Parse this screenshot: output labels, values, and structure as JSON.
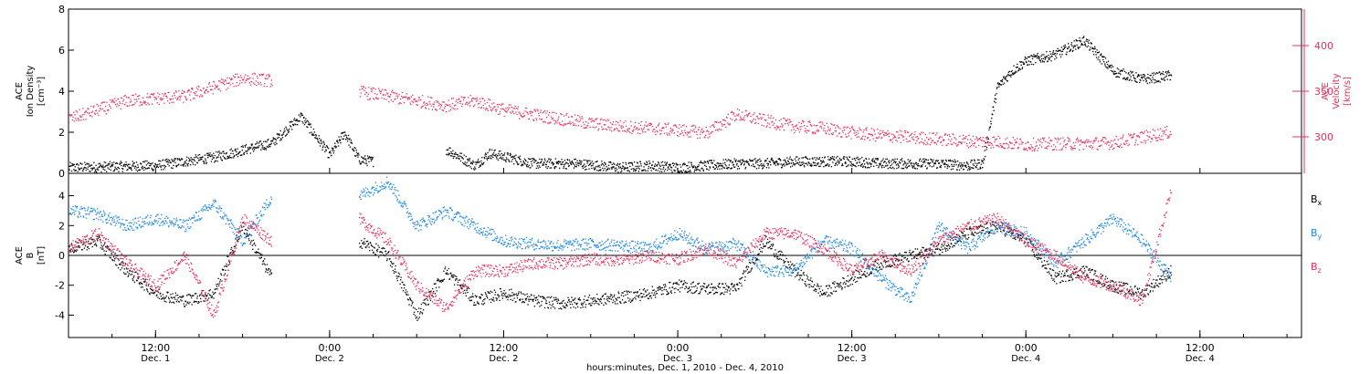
{
  "chart_data": [
    {
      "type": "scatter",
      "panel": "top",
      "ylabel_left": [
        "ACE",
        "Ion Density",
        "[cm⁻³]"
      ],
      "ylabel_right": [
        "ACE",
        "Velocity",
        "[km/s]"
      ],
      "ylim_left": [
        0,
        8
      ],
      "yticks_left": [
        "0",
        "2",
        "4",
        "6",
        "8"
      ],
      "ylim_right": [
        260,
        440
      ],
      "yticks_right": [
        "300",
        "350",
        "400"
      ],
      "series": [
        {
          "axis": "left",
          "color": "#000000",
          "t": [
            0,
            6,
            10,
            14,
            16,
            18,
            19,
            20,
            21,
            22,
            23,
            26,
            28,
            29,
            32,
            35,
            38,
            40,
            42,
            44,
            46,
            48,
            50,
            52,
            54,
            56,
            58,
            60,
            62,
            63,
            64,
            65,
            66,
            68,
            70,
            72,
            74,
            76
          ],
          "y": [
            0.3,
            0.4,
            0.8,
            1.5,
            2.8,
            0.9,
            2.0,
            0.7,
            0.6,
            null,
            null,
            1.2,
            0.4,
            1.0,
            0.5,
            0.5,
            0.3,
            0.4,
            0.3,
            0.4,
            0.5,
            0.5,
            0.6,
            0.6,
            0.6,
            0.5,
            0.5,
            0.5,
            0.4,
            0.5,
            4.2,
            5.0,
            5.5,
            5.8,
            6.5,
            5.0,
            4.6,
            4.8
          ]
        },
        {
          "axis": "right",
          "color": "#e8305a",
          "t": [
            0,
            4,
            8,
            12,
            14,
            16,
            18,
            20,
            22,
            24,
            26,
            28,
            30,
            32,
            34,
            36,
            38,
            40,
            42,
            44,
            46,
            48,
            50,
            52,
            54,
            56,
            58,
            60,
            62,
            64,
            66,
            68,
            70,
            72,
            74,
            76
          ],
          "y": [
            320,
            340,
            345,
            365,
            362,
            null,
            null,
            350,
            345,
            340,
            335,
            340,
            330,
            325,
            320,
            315,
            312,
            310,
            308,
            305,
            325,
            318,
            312,
            310,
            305,
            302,
            300,
            298,
            296,
            295,
            292,
            293,
            293,
            294,
            300,
            306
          ]
        }
      ]
    },
    {
      "type": "scatter",
      "panel": "bottom",
      "ylabel": [
        "ACE",
        "B",
        "[nT]"
      ],
      "ylim": [
        -5.5,
        5.5
      ],
      "yticks": [
        "-4",
        "-2",
        "0",
        "2",
        "4"
      ],
      "legend": [
        {
          "label": "B",
          "sub": "x",
          "color": "#000000"
        },
        {
          "label": "B",
          "sub": "y",
          "color": "#1e88e5"
        },
        {
          "label": "B",
          "sub": "z",
          "color": "#e8305a"
        }
      ],
      "series": [
        {
          "name": "Bx",
          "color": "#000000",
          "t": [
            0,
            2,
            4,
            6,
            8,
            10,
            12,
            14,
            16,
            18,
            20,
            22,
            24,
            26,
            28,
            30,
            32,
            34,
            36,
            38,
            40,
            42,
            44,
            46,
            48,
            50,
            52,
            54,
            56,
            58,
            60,
            62,
            64,
            66,
            68,
            70,
            72,
            74,
            76
          ],
          "y": [
            0.5,
            1.0,
            -1.0,
            -2.5,
            -3.0,
            -2.5,
            2.0,
            -1.5,
            null,
            null,
            1.0,
            0.0,
            -4.0,
            -1.0,
            -3.0,
            -2.5,
            -3.0,
            -3.2,
            -3.0,
            -2.8,
            -2.5,
            -2.0,
            -2.2,
            -2.2,
            1.0,
            -1.0,
            -2.5,
            -1.5,
            -0.5,
            0.0,
            0.5,
            1.5,
            2.0,
            1.0,
            -1.5,
            -1.0,
            -2.0,
            -2.5,
            -1.0
          ]
        },
        {
          "name": "By",
          "color": "#1e88e5",
          "t": [
            0,
            2,
            4,
            6,
            8,
            10,
            12,
            14,
            16,
            18,
            20,
            22,
            24,
            26,
            28,
            30,
            32,
            34,
            36,
            38,
            40,
            42,
            44,
            46,
            48,
            50,
            52,
            54,
            56,
            58,
            60,
            62,
            64,
            66,
            68,
            70,
            72,
            74,
            76
          ],
          "y": [
            3.0,
            2.8,
            2.0,
            2.5,
            2.0,
            3.5,
            1.0,
            4.0,
            null,
            null,
            4.0,
            5.0,
            2.0,
            3.0,
            2.0,
            1.0,
            0.8,
            0.7,
            0.8,
            0.7,
            0.5,
            1.5,
            0.5,
            0.8,
            -1.0,
            -1.0,
            1.0,
            0.5,
            -1.5,
            -3.0,
            2.0,
            0.5,
            2.0,
            1.5,
            -0.5,
            1.0,
            2.5,
            1.0,
            -1.5
          ]
        },
        {
          "name": "Bz",
          "color": "#e8305a",
          "t": [
            0,
            2,
            4,
            6,
            8,
            10,
            12,
            14,
            16,
            18,
            20,
            22,
            24,
            26,
            28,
            30,
            32,
            34,
            36,
            38,
            40,
            42,
            44,
            46,
            48,
            50,
            52,
            54,
            56,
            58,
            60,
            62,
            64,
            66,
            68,
            70,
            72,
            74,
            76
          ],
          "y": [
            0.5,
            1.5,
            -0.5,
            -2.0,
            0.0,
            -4.0,
            2.5,
            1.0,
            null,
            null,
            2.5,
            1.0,
            -2.0,
            -3.5,
            -1.0,
            -1.0,
            -0.5,
            -0.5,
            -0.2,
            -0.3,
            0.0,
            -0.2,
            0.5,
            -0.5,
            1.5,
            1.5,
            0.5,
            -1.0,
            0.0,
            -1.0,
            1.0,
            2.0,
            2.5,
            1.0,
            0.0,
            -1.5,
            -2.0,
            -3.0,
            4.5
          ]
        }
      ]
    },
    {
      "type": "time_axis",
      "xlim_hours": [
        0,
        85
      ],
      "ticks": [
        {
          "t": 6,
          "time": "12:00",
          "date": "Dec. 1"
        },
        {
          "t": 18,
          "time": "0:00",
          "date": "Dec. 2"
        },
        {
          "t": 30,
          "time": "12:00",
          "date": "Dec. 2"
        },
        {
          "t": 42,
          "time": "0:00",
          "date": "Dec. 3"
        },
        {
          "t": 54,
          "time": "12:00",
          "date": "Dec. 3"
        },
        {
          "t": 66,
          "time": "0:00",
          "date": "Dec. 4"
        },
        {
          "t": 78,
          "time": "12:00",
          "date": "Dec. 4"
        }
      ],
      "xlabel": "hours:minutes, Dec.  1, 2010 - Dec.  4, 2010"
    }
  ]
}
